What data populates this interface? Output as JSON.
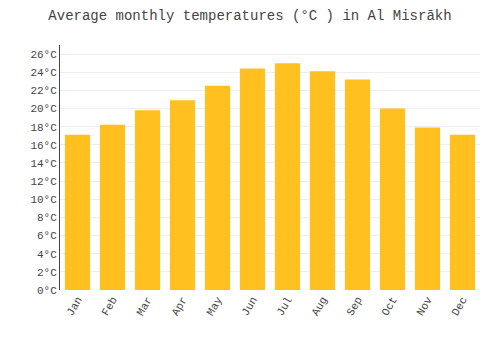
{
  "chart_data": {
    "type": "bar",
    "title": "Average monthly temperatures (°C ) in Al Misrākh",
    "categories": [
      "Jan",
      "Feb",
      "Mar",
      "Apr",
      "May",
      "Jun",
      "Jul",
      "Aug",
      "Sep",
      "Oct",
      "Nov",
      "Dec"
    ],
    "values": [
      17.1,
      18.2,
      19.8,
      20.9,
      22.5,
      24.4,
      25.0,
      24.1,
      23.2,
      20.0,
      17.9,
      17.1
    ],
    "color": "#FFC020",
    "ylim": [
      0,
      27
    ],
    "yticks": [
      {
        "value": 0,
        "label": "0°C"
      },
      {
        "value": 2,
        "label": "2°C"
      },
      {
        "value": 4,
        "label": "4°C"
      },
      {
        "value": 6,
        "label": "6°C"
      },
      {
        "value": 8,
        "label": "8°C"
      },
      {
        "value": 10,
        "label": "10°C"
      },
      {
        "value": 12,
        "label": "12°C"
      },
      {
        "value": 14,
        "label": "14°C"
      },
      {
        "value": 16,
        "label": "16°C"
      },
      {
        "value": 18,
        "label": "18°C"
      },
      {
        "value": 20,
        "label": "20°C"
      },
      {
        "value": 22,
        "label": "22°C"
      },
      {
        "value": 24,
        "label": "24°C"
      },
      {
        "value": 26,
        "label": "26°C"
      }
    ],
    "grid": true
  }
}
